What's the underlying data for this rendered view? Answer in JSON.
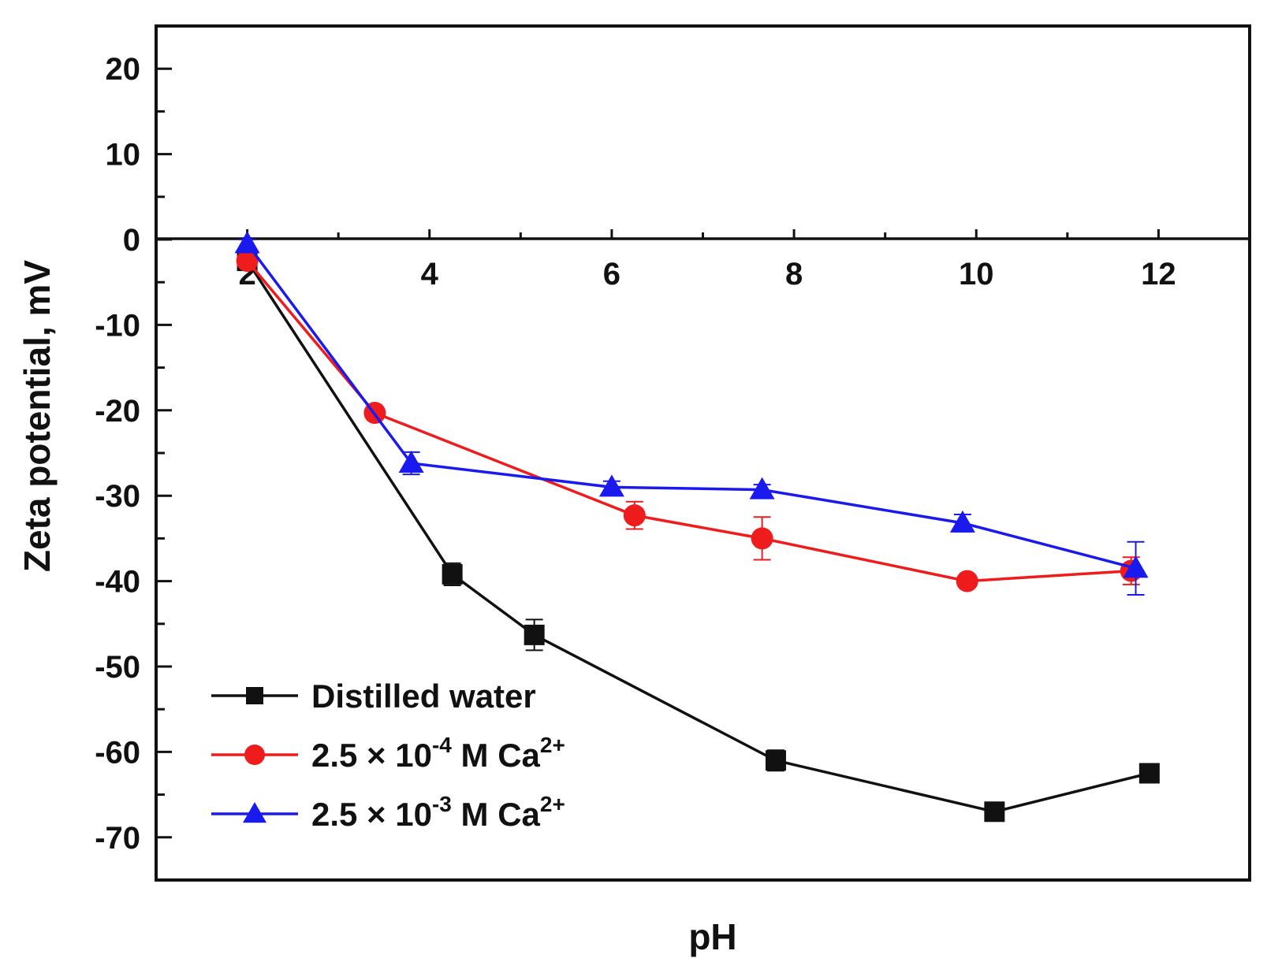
{
  "chart_data": {
    "type": "line",
    "xlabel": "pH",
    "ylabel": "Zeta potential, mV",
    "xlim": [
      1,
      13
    ],
    "ylim": [
      -75,
      25
    ],
    "xticks": [
      2,
      4,
      6,
      8,
      10,
      12
    ],
    "yticks": [
      20,
      10,
      0,
      -10,
      -20,
      -30,
      -40,
      -50,
      -60,
      -70
    ],
    "legend_position": "bottom-left",
    "series": [
      {
        "name": "Distilled water",
        "legend_parts": {
          "text": "Distilled water",
          "sup": ""
        },
        "color": "#111111",
        "marker": "square",
        "x": [
          2.0,
          4.25,
          5.15,
          7.8,
          10.2,
          11.9
        ],
        "y": [
          -2.5,
          -39.2,
          -46.3,
          -61.0,
          -67.0,
          -62.5
        ],
        "err": [
          0.5,
          1.3,
          1.8,
          1.2,
          0.6,
          0.5
        ]
      },
      {
        "name": "2.5 × 10-4 M Ca2+",
        "legend_parts": {
          "a": "2.5 × 10",
          "exp": "-4",
          "b": " M Ca",
          "sup": "2+"
        },
        "color": "#ee1c1c",
        "marker": "circle",
        "x": [
          2.0,
          3.4,
          6.25,
          7.65,
          9.9,
          11.7
        ],
        "y": [
          -2.5,
          -20.3,
          -32.3,
          -35.0,
          -40.0,
          -38.8
        ],
        "err": [
          0.5,
          0.6,
          1.6,
          2.5,
          0.6,
          1.6
        ]
      },
      {
        "name": "2.5 × 10-3 M Ca2+",
        "legend_parts": {
          "a": "2.5 × 10",
          "exp": "-3",
          "b": " M Ca",
          "sup": "2+"
        },
        "color": "#1a1aee",
        "marker": "triangle",
        "x": [
          2.0,
          3.8,
          6.0,
          7.65,
          9.85,
          11.75
        ],
        "y": [
          -0.5,
          -26.2,
          -29.0,
          -29.3,
          -33.2,
          -38.5
        ],
        "err": [
          0.5,
          1.3,
          0.7,
          0.6,
          1.0,
          3.1
        ]
      }
    ]
  }
}
